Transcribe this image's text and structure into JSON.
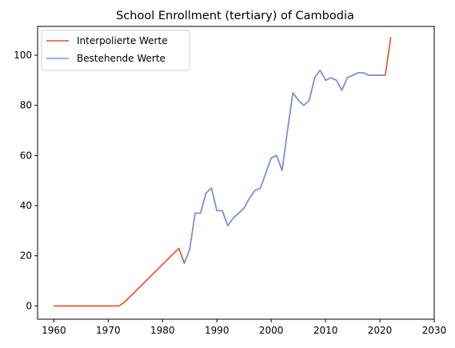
{
  "chart_data": {
    "type": "line",
    "title": "School Enrollment (tertiary) of Cambodia",
    "xlabel": "",
    "ylabel": "",
    "xlim": [
      1957,
      2030
    ],
    "ylim": [
      -5.3,
      111.5
    ],
    "xticks": [
      1960,
      1970,
      1980,
      1990,
      2000,
      2010,
      2020,
      2030
    ],
    "yticks": [
      0,
      20,
      40,
      60,
      80,
      100
    ],
    "grid": false,
    "legend_position": "top-left",
    "series": [
      {
        "name": "Interpolierte Werte",
        "color": "#e8501e",
        "x": [
          1960,
          1972,
          1973,
          1983,
          1984,
          1985,
          1986,
          1987,
          1988,
          1989,
          1990,
          1991,
          1992,
          1993,
          1994,
          1995,
          1996,
          1997,
          1998,
          1999,
          2000,
          2001,
          2002,
          2003,
          2004,
          2005,
          2006,
          2007,
          2008,
          2009,
          2010,
          2011,
          2012,
          2013,
          2014,
          2015,
          2016,
          2017,
          2018,
          2019,
          2020,
          2021,
          2022
        ],
        "y": [
          0,
          0,
          1.5,
          23,
          17,
          22.5,
          37,
          37,
          45,
          47,
          38,
          38,
          32,
          35,
          37,
          39,
          43,
          46,
          47,
          53,
          59,
          60,
          54,
          70,
          85,
          82,
          80,
          82,
          91,
          94,
          90,
          91,
          90,
          86,
          91,
          92,
          93,
          93,
          92,
          92,
          92,
          92,
          107
        ]
      },
      {
        "name": "Bestehende Werte",
        "color": "#6f95e0",
        "x": [
          1984,
          1985,
          1986,
          1987,
          1988,
          1989,
          1990,
          1991,
          1992,
          1993,
          1994,
          1995,
          1996,
          1997,
          1998,
          1999,
          2000,
          2001,
          2002,
          2003,
          2004,
          2005,
          2006,
          2007,
          2008,
          2009,
          2010,
          2011,
          2012,
          2013,
          2014,
          2015,
          2016,
          2017,
          2018,
          2019,
          2020,
          2021
        ],
        "y": [
          17,
          22.5,
          37,
          37,
          45,
          47,
          38,
          38,
          32,
          35,
          37,
          39,
          43,
          46,
          47,
          53,
          59,
          60,
          54,
          70,
          85,
          82,
          80,
          82,
          91,
          94,
          90,
          91,
          90,
          86,
          91,
          92,
          93,
          93,
          92,
          92,
          92,
          92
        ]
      }
    ]
  }
}
